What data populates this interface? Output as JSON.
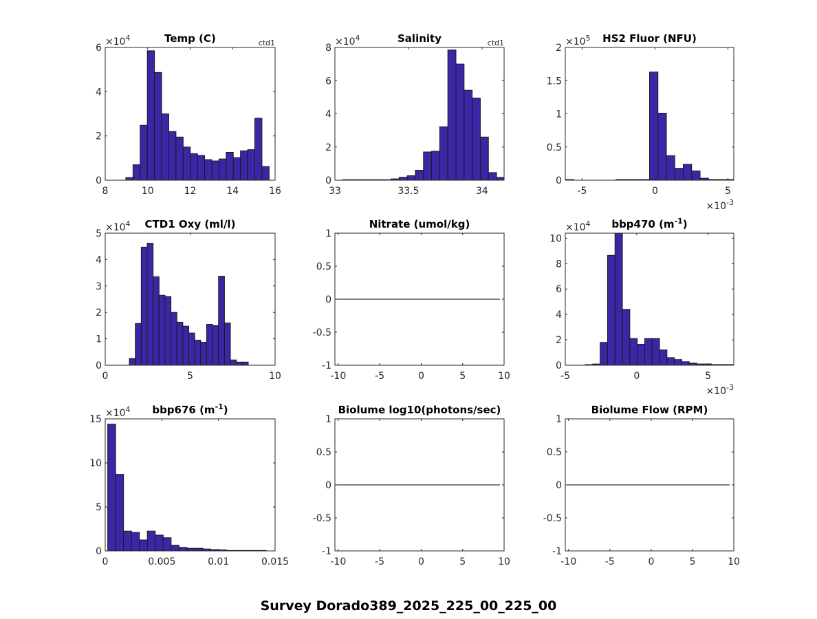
{
  "figure": {
    "suptitle": "Survey Dorado389_2025_225_00_225_00",
    "bar_color": "#3b27a6",
    "bar_edge": "#1a1a1a"
  },
  "chart_data": [
    {
      "type": "bar",
      "title": "Temp (C)",
      "corner_label": "ctd1",
      "xlim": [
        8,
        16
      ],
      "ylim": [
        0,
        6
      ],
      "y_exponent": "4",
      "xticks": [
        8,
        10,
        12,
        14,
        16
      ],
      "xtick_labels": [
        "8",
        "10",
        "12",
        "14",
        "16"
      ],
      "yticks": [
        0,
        2,
        4,
        6
      ],
      "ytick_labels": [
        "0",
        "2",
        "4",
        "6"
      ],
      "bin_start": 8.97,
      "bin_width": 0.3375,
      "values": [
        0.12,
        0.7,
        2.48,
        5.85,
        4.87,
        3.0,
        2.2,
        1.95,
        1.5,
        1.2,
        1.12,
        0.93,
        0.87,
        0.96,
        1.26,
        1.02,
        1.33,
        1.38,
        2.8,
        0.62
      ]
    },
    {
      "type": "bar",
      "title": "Salinity",
      "corner_label": "ctd1",
      "xlim": [
        33.0,
        34.15
      ],
      "ylim": [
        0,
        8
      ],
      "y_exponent": "4",
      "xticks": [
        33,
        33.5,
        34
      ],
      "xtick_labels": [
        "33",
        "33.5",
        "34"
      ],
      "yticks": [
        0,
        2,
        4,
        6,
        8
      ],
      "ytick_labels": [
        "0",
        "2",
        "4",
        "6",
        "8"
      ],
      "bin_start": 33.05,
      "bin_width": 0.0552,
      "values": [
        0.03,
        0.03,
        0.03,
        0.03,
        0.03,
        0.03,
        0.08,
        0.18,
        0.27,
        0.6,
        1.7,
        1.75,
        3.22,
        7.85,
        7.0,
        5.42,
        4.95,
        2.6,
        0.46,
        0.17,
        0.13
      ]
    },
    {
      "type": "bar",
      "title": "HS2 Fluor (NFU)",
      "corner_label": "",
      "xlim": [
        -6.15,
        5.4
      ],
      "ylim": [
        0,
        2
      ],
      "y_exponent": "5",
      "x_exponent": "-3",
      "xticks": [
        -5,
        0,
        5
      ],
      "xtick_labels": [
        "-5",
        "0",
        "5"
      ],
      "yticks": [
        0,
        0.5,
        1,
        1.5,
        2
      ],
      "ytick_labels": [
        "0",
        "0.5",
        "1",
        "1.5",
        "2"
      ],
      "bin_start": -6.15,
      "bin_width": 0.5775,
      "values": [
        0.01,
        0.0,
        0.0,
        0.0,
        0.0,
        0.0,
        0.01,
        0.01,
        0.01,
        0.01,
        1.63,
        1.01,
        0.37,
        0.18,
        0.24,
        0.14,
        0.03,
        0.01,
        0.01,
        0.01
      ]
    },
    {
      "type": "bar",
      "title": "CTD1 Oxy (ml/l)",
      "corner_label": "",
      "xlim": [
        0,
        10
      ],
      "ylim": [
        0,
        5
      ],
      "y_exponent": "4",
      "xticks": [
        0,
        5,
        10
      ],
      "xtick_labels": [
        "0",
        "5",
        "10"
      ],
      "yticks": [
        0,
        1,
        2,
        3,
        4,
        5
      ],
      "ytick_labels": [
        "0",
        "1",
        "2",
        "3",
        "4",
        "5"
      ],
      "bin_start": 1.42,
      "bin_width": 0.35,
      "values": [
        0.25,
        1.58,
        4.47,
        4.62,
        3.35,
        2.65,
        2.6,
        2.0,
        1.63,
        1.48,
        1.22,
        0.95,
        0.87,
        1.55,
        1.5,
        3.37,
        1.6,
        0.2,
        0.12,
        0.12
      ]
    },
    {
      "type": "line",
      "title": "Nitrate (umol/kg)",
      "corner_label": "",
      "xlim": [
        -10.4,
        10
      ],
      "ylim": [
        -1,
        1
      ],
      "xticks": [
        -10,
        -5,
        0,
        5,
        10
      ],
      "xtick_labels": [
        "-10",
        "-5",
        "0",
        "5",
        "10"
      ],
      "yticks": [
        -1,
        -0.5,
        0,
        0.5,
        1
      ],
      "ytick_labels": [
        "-1",
        "-0.5",
        "0",
        "0.5",
        "1"
      ],
      "x": [
        -10.4,
        9.5
      ],
      "y": [
        0,
        0
      ]
    },
    {
      "type": "bar",
      "title": "bbp470 (m",
      "title_sup": "-1",
      "title_end": ")",
      "corner_label": "",
      "xlim": [
        -5,
        6.8
      ],
      "ylim": [
        0,
        10.4
      ],
      "y_exponent": "4",
      "x_exponent": "-3",
      "xticks": [
        -5,
        0,
        5
      ],
      "xtick_labels": [
        "-5",
        "0",
        "5"
      ],
      "yticks": [
        0,
        2,
        4,
        6,
        8,
        10
      ],
      "ytick_labels": [
        "0",
        "2",
        "4",
        "6",
        "8",
        "10"
      ],
      "bin_start": -3.6,
      "bin_width": 0.52,
      "values": [
        0.05,
        0.1,
        1.8,
        8.65,
        10.4,
        4.4,
        2.1,
        1.65,
        2.1,
        2.1,
        1.2,
        0.6,
        0.45,
        0.28,
        0.16,
        0.1,
        0.1,
        0.05,
        0.05,
        0.05
      ]
    },
    {
      "type": "bar",
      "title": "bbp676 (m",
      "title_sup": "-1",
      "title_end": ")",
      "corner_label": "",
      "xlim": [
        0,
        0.015
      ],
      "ylim": [
        0,
        15
      ],
      "y_exponent": "4",
      "xticks": [
        0,
        0.005,
        0.01,
        0.015
      ],
      "xtick_labels": [
        "0",
        "0.005",
        "0.01",
        "0.015"
      ],
      "yticks": [
        0,
        5,
        10,
        15
      ],
      "ytick_labels": [
        "0",
        "5",
        "10",
        "15"
      ],
      "bin_start": 0.00022,
      "bin_width": 0.0007,
      "values": [
        14.4,
        8.7,
        2.25,
        2.1,
        1.25,
        2.25,
        1.8,
        1.5,
        0.65,
        0.4,
        0.3,
        0.3,
        0.22,
        0.15,
        0.12,
        0.05,
        0.05,
        0.05,
        0.05,
        0.05
      ]
    },
    {
      "type": "line",
      "title": "Biolume log10(photons/sec)",
      "corner_label": "",
      "xlim": [
        -10.4,
        10
      ],
      "ylim": [
        -1,
        1
      ],
      "xticks": [
        -10,
        -5,
        0,
        5,
        10
      ],
      "xtick_labels": [
        "-10",
        "-5",
        "0",
        "5",
        "10"
      ],
      "yticks": [
        -1,
        -0.5,
        0,
        0.5,
        1
      ],
      "ytick_labels": [
        "-1",
        "-0.5",
        "0",
        "0.5",
        "1"
      ],
      "x": [
        -10.4,
        9.5
      ],
      "y": [
        0,
        0
      ]
    },
    {
      "type": "line",
      "title": "Biolume Flow (RPM)",
      "corner_label": "",
      "xlim": [
        -10.4,
        10
      ],
      "ylim": [
        -1,
        1
      ],
      "xticks": [
        -10,
        -5,
        0,
        5,
        10
      ],
      "xtick_labels": [
        "-10",
        "-5",
        "0",
        "5",
        "10"
      ],
      "yticks": [
        -1,
        -0.5,
        0,
        0.5,
        1
      ],
      "ytick_labels": [
        "-1",
        "-0.5",
        "0",
        "0.5",
        "1"
      ],
      "x": [
        -10.4,
        9.5
      ],
      "y": [
        0,
        0
      ]
    }
  ]
}
